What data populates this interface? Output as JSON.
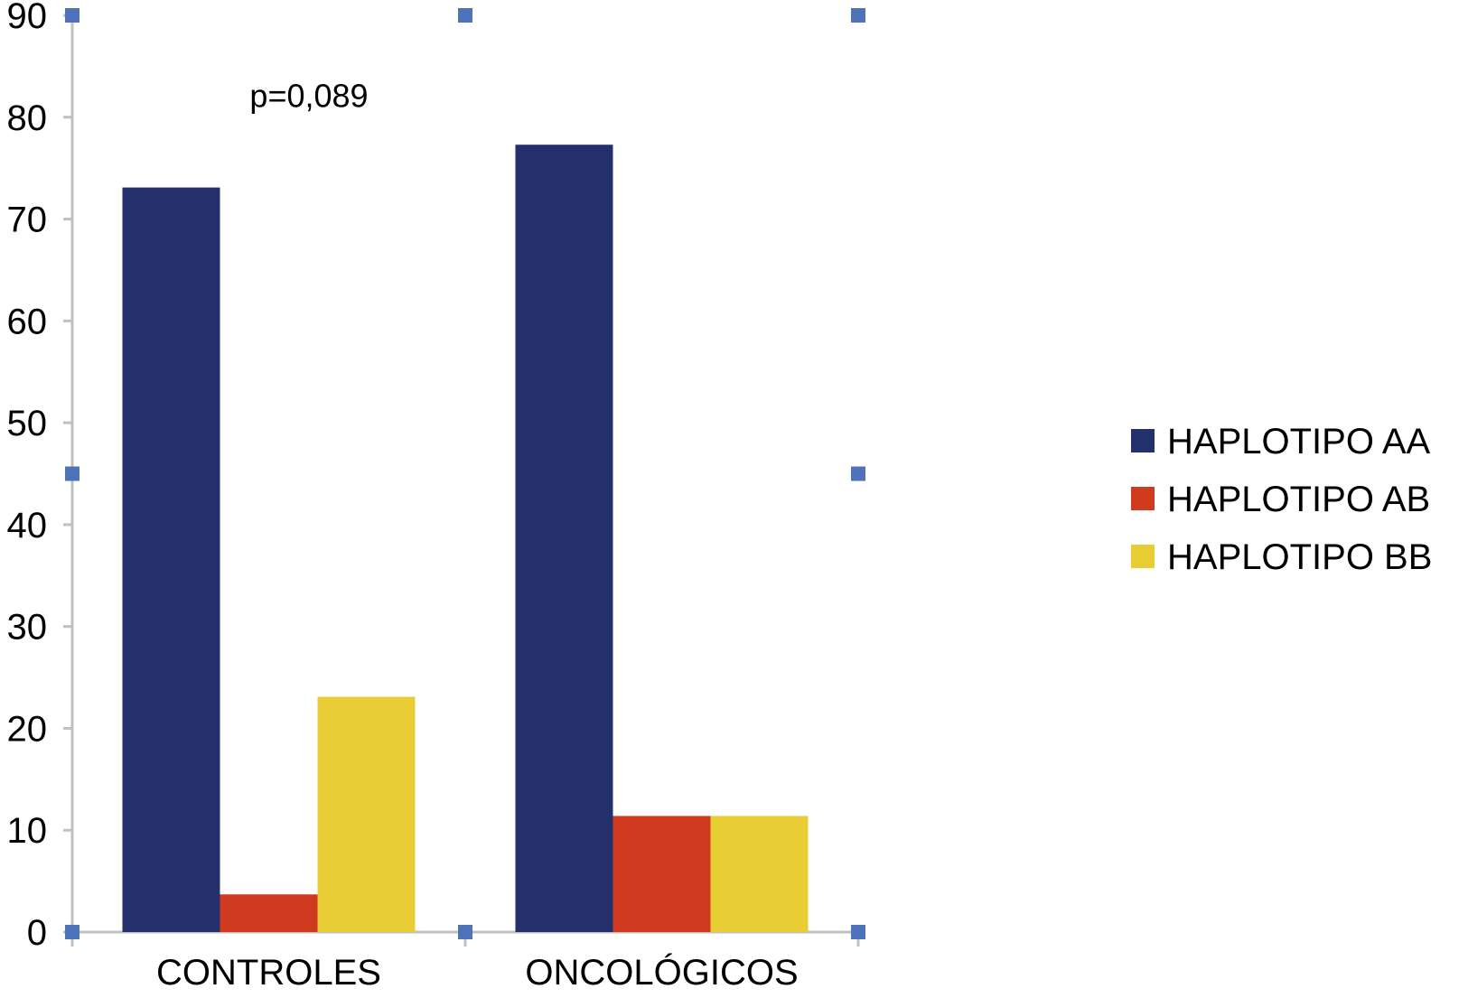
{
  "chart_data": {
    "type": "bar",
    "categories": [
      "CONTROLES",
      "ONCOLÓGICOS"
    ],
    "series": [
      {
        "name": "HAPLOTIPO AA",
        "values": [
          73.1,
          77.3
        ],
        "color": "#23306b"
      },
      {
        "name": "HAPLOTIPO AB",
        "values": [
          3.7,
          11.4
        ],
        "color": "#d03b20"
      },
      {
        "name": "HAPLOTIPO BB",
        "values": [
          23.1,
          11.4
        ],
        "color": "#e8ce34"
      }
    ],
    "ylim": [
      0,
      90
    ],
    "yticks": [
      "0",
      "10",
      "20",
      "30",
      "40",
      "50",
      "60",
      "70",
      "80",
      "90"
    ],
    "annotation": "p=0,089",
    "legend_position": "right",
    "grid": false,
    "handle_color": "#4f72b8",
    "axis_color": "#c0c0c0"
  }
}
